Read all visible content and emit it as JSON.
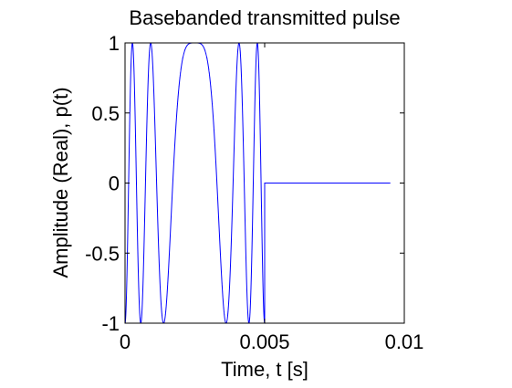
{
  "chart_data": {
    "type": "line",
    "title": "Basebanded transmitted pulse",
    "xlabel": "Time, t [s]",
    "ylabel": "Amplitude (Real), p(t)",
    "xlim": [
      0,
      0.01
    ],
    "ylim": [
      -1,
      1
    ],
    "xticks": [
      0,
      0.005,
      0.01
    ],
    "xtick_labels": [
      "0",
      "0.005",
      "0.01"
    ],
    "yticks": [
      -1,
      -0.5,
      0,
      0.5,
      1
    ],
    "ytick_labels": [
      "-1",
      "-0.5",
      "0",
      "0.5",
      "1"
    ],
    "grid": false,
    "box": true,
    "series": [
      {
        "color": "#0000ff",
        "function": "cos(pi*B/tau*(t - tau/2)^2) for 0 <= t <= tau, 0 for tau < t <= t_end",
        "tau": 0.005,
        "B": 4000,
        "t_end": 0.0095
      }
    ],
    "colors": {
      "line": "#0000ff",
      "axes": "#000000",
      "background": "#ffffff"
    }
  }
}
